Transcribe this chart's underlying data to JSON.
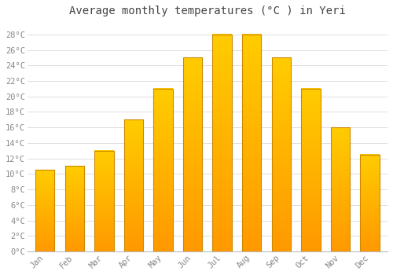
{
  "title": "Average monthly temperatures (°C ) in Yeri",
  "months": [
    "Jan",
    "Feb",
    "Mar",
    "Apr",
    "May",
    "Jun",
    "Jul",
    "Aug",
    "Sep",
    "Oct",
    "Nov",
    "Dec"
  ],
  "temperatures": [
    10.5,
    11.0,
    13.0,
    17.0,
    21.0,
    25.0,
    28.0,
    28.0,
    25.0,
    21.0,
    16.0,
    12.5
  ],
  "bar_color": "#FFA500",
  "bar_color_mid": "#FFD000",
  "bar_edge_color": "#CC8800",
  "background_color": "#FFFFFF",
  "grid_color": "#DDDDDD",
  "title_color": "#444444",
  "tick_label_color": "#888888",
  "ylim": [
    0,
    29.5
  ],
  "yticks": [
    0,
    2,
    4,
    6,
    8,
    10,
    12,
    14,
    16,
    18,
    20,
    22,
    24,
    26,
    28
  ],
  "title_fontsize": 10,
  "tick_fontsize": 7.5,
  "figwidth": 5.0,
  "figheight": 3.5,
  "dpi": 100
}
